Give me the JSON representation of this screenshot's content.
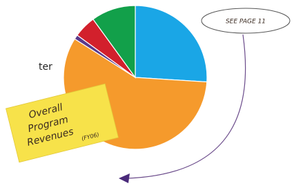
{
  "chart_data": {
    "type": "pie",
    "partial_text": "ter",
    "series": [
      {
        "name": null,
        "color": "#1aa6e6",
        "values": [
          26
        ]
      },
      {
        "name": null,
        "color": "#f59a2c",
        "values": [
          58
        ]
      },
      {
        "name": null,
        "color": "#5a3a8c",
        "values": [
          1
        ]
      },
      {
        "name": null,
        "color": "#d2202c",
        "values": [
          5
        ]
      },
      {
        "name": null,
        "color": "#12a04a",
        "values": [
          10
        ]
      }
    ],
    "note": [
      "Overall",
      "Program",
      "Revenues",
      "(FY06)"
    ],
    "callout": "SEE PAGE 11"
  }
}
